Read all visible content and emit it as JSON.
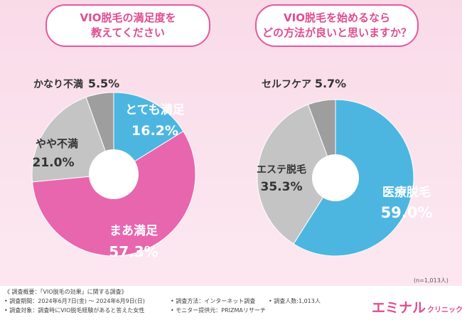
{
  "n_note": "(n=1,013人)",
  "footer": {
    "overview": "《 調査概要：「VIO脱毛の効果」に関する調査》",
    "period": "• 調査期間：2024年6月7日(金) ～ 2024年6月9日(日)",
    "target": "• 調査対象：調査時にVIO脱毛経験があると答えた女性",
    "method": "• 調査方法：インターネット調査",
    "provider": "• モニター提供元：PRIZMAリサーチ",
    "respondents": "• 調査人数:1,013人"
  },
  "brand": {
    "name": "エミナル",
    "sub": "クリニック"
  },
  "chart_data": [
    {
      "type": "pie",
      "title_lines": [
        "VIO脱毛の満足度を",
        "教えてください"
      ],
      "title": "VIO脱毛の満足度を教えてください",
      "categories": [
        "とても満足",
        "まあ満足",
        "やや不満",
        "かなり不満"
      ],
      "values": [
        16.2,
        57.3,
        21.0,
        5.5
      ],
      "label_text": [
        "16.2%",
        "57.3%",
        "21.0%",
        "5.5%"
      ],
      "colors": [
        "#4db6e0",
        "#e866ad",
        "#c4c4c4",
        "#9e9e9e"
      ]
    },
    {
      "type": "pie",
      "title_lines": [
        "VIO脱毛を始めるなら",
        "どの方法が良いと思いますか？"
      ],
      "title": "VIO脱毛を始めるならどの方法が良いと思いますか？",
      "categories": [
        "医療脱毛",
        "エステ脱毛",
        "セルフケア"
      ],
      "values": [
        59.0,
        35.3,
        5.7
      ],
      "label_text": [
        "59.0%",
        "35.3%",
        "5.7%"
      ],
      "colors": [
        "#4db6e0",
        "#c4c4c4",
        "#9e9e9e"
      ]
    }
  ]
}
